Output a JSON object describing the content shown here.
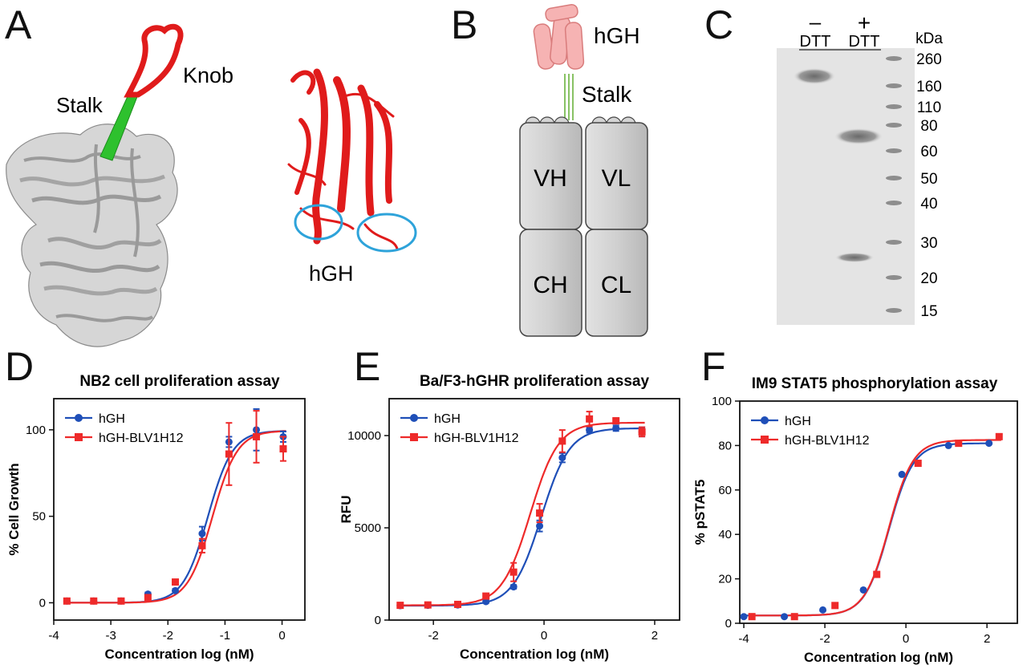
{
  "panels": {
    "A": {
      "letter": "A",
      "labels": {
        "knob": "Knob",
        "stalk": "Stalk",
        "hgh": "hGH"
      }
    },
    "B": {
      "letter": "B",
      "labels": {
        "hgh": "hGH",
        "stalk": "Stalk",
        "vh": "VH",
        "vl": "VL",
        "ch": "CH",
        "cl": "CL"
      }
    },
    "C": {
      "letter": "C",
      "lane_labels": {
        "minus": "–",
        "plus": "+",
        "dtt1": "DTT",
        "dtt2": "DTT"
      },
      "unit": "kDa",
      "markers": [
        "260",
        "160",
        "110",
        "80",
        "60",
        "50",
        "40",
        "30",
        "20",
        "15"
      ]
    },
    "D": {
      "letter": "D"
    },
    "E": {
      "letter": "E"
    },
    "F": {
      "letter": "F"
    }
  },
  "colors": {
    "hgh": "#1f4fb8",
    "fusion": "#ee2a2a",
    "ribbon_red": "#e01b1b",
    "ribbon_green": "#2ec12e",
    "ribbon_grey": "#b9b9b9",
    "circle": "#2ea3da"
  },
  "chart_data": [
    {
      "panel": "D",
      "type": "scatter",
      "title": "NB2 cell proliferation assay",
      "xlabel": "Concentration log (nM)",
      "ylabel": "% Cell Growth",
      "xlim": [
        -4,
        0.4
      ],
      "ylim": [
        -10,
        118
      ],
      "xticks": [
        "-4",
        "-3",
        "-2",
        "-1",
        "0"
      ],
      "yticks": [
        "0",
        "50",
        "100"
      ],
      "legend_position": "top-left",
      "series": [
        {
          "name": "hGH",
          "marker": "circle",
          "x": [
            -3.77,
            -3.3,
            -2.82,
            -2.35,
            -1.87,
            -1.4,
            -0.93,
            -0.45,
            0.02
          ],
          "y": [
            1,
            1,
            1,
            5,
            7,
            40,
            93,
            100,
            96
          ],
          "err": [
            1,
            1,
            1,
            1,
            1,
            4,
            3,
            12,
            3
          ],
          "fit": {
            "bottom": 0,
            "top": 99.5,
            "ec50log": -1.3,
            "hill": 2.0
          }
        },
        {
          "name": "hGH-BLV1H12",
          "marker": "square",
          "x": [
            -3.77,
            -3.3,
            -2.82,
            -2.35,
            -1.87,
            -1.4,
            -0.93,
            -0.45,
            0.02
          ],
          "y": [
            1,
            1,
            1,
            3,
            12,
            33,
            86,
            96,
            89
          ],
          "err": [
            1,
            1,
            1,
            1,
            1,
            4,
            18,
            15,
            7
          ],
          "fit": {
            "bottom": 0,
            "top": 99.5,
            "ec50log": -1.22,
            "hill": 2.0
          }
        }
      ]
    },
    {
      "panel": "E",
      "type": "scatter",
      "title": "Ba/F3-hGHR proliferation assay",
      "xlabel": "Concentration log (nM)",
      "ylabel": "RFU",
      "xlim": [
        -2.8,
        2.45
      ],
      "ylim": [
        0,
        12000
      ],
      "xticks": [
        "-2",
        "0",
        "2"
      ],
      "yticks": [
        "0",
        "5000",
        "10000"
      ],
      "legend_position": "top-left",
      "series": [
        {
          "name": "hGH",
          "marker": "circle",
          "x": [
            -2.6,
            -2.1,
            -1.56,
            -1.05,
            -0.55,
            -0.08,
            0.33,
            0.82,
            1.3,
            1.77
          ],
          "y": [
            780,
            800,
            820,
            1000,
            1800,
            5100,
            8800,
            10300,
            10400,
            10200
          ],
          "err": [
            60,
            60,
            60,
            80,
            100,
            300,
            250,
            150,
            150,
            250
          ],
          "fit": {
            "bottom": 780,
            "top": 10400,
            "ec50log": -0.05,
            "hill": 1.7
          }
        },
        {
          "name": "hGH-BLV1H12",
          "marker": "square",
          "x": [
            -2.6,
            -2.1,
            -1.56,
            -1.05,
            -0.55,
            -0.08,
            0.33,
            0.82,
            1.3,
            1.77
          ],
          "y": [
            800,
            820,
            850,
            1300,
            2600,
            5800,
            9700,
            10900,
            10800,
            10200
          ],
          "err": [
            60,
            60,
            60,
            100,
            500,
            500,
            600,
            400,
            150,
            250
          ],
          "fit": {
            "bottom": 800,
            "top": 10700,
            "ec50log": -0.25,
            "hill": 1.7
          }
        }
      ]
    },
    {
      "panel": "F",
      "type": "scatter",
      "title": "IM9 STAT5 phosphorylation assay",
      "xlabel": "Concentration log (nM)",
      "ylabel": "% pSTAT5",
      "xlim": [
        -4.1,
        2.75
      ],
      "ylim": [
        0,
        100
      ],
      "xticks": [
        "-4",
        "-2",
        "0",
        "2"
      ],
      "yticks": [
        "0",
        "20",
        "40",
        "60",
        "80",
        "100"
      ],
      "legend_position": "top-left",
      "series": [
        {
          "name": "hGH",
          "marker": "circle",
          "x": [
            -4.0,
            -3.0,
            -2.05,
            -1.05,
            -0.1,
            1.05,
            2.05
          ],
          "y": [
            3,
            3,
            6,
            15,
            67,
            80,
            81
          ],
          "err": [
            0,
            0,
            0,
            0,
            0,
            0,
            0
          ],
          "fit": {
            "bottom": 3.5,
            "top": 81,
            "ec50log": -0.42,
            "hill": 1.45
          }
        },
        {
          "name": "hGH-BLV1H12",
          "marker": "square",
          "x": [
            -3.8,
            -2.75,
            -1.75,
            -0.72,
            0.3,
            1.3,
            2.3
          ],
          "y": [
            3,
            3,
            8,
            22,
            72,
            81,
            84
          ],
          "err": [
            0,
            0,
            0,
            0,
            0,
            0,
            0
          ],
          "fit": {
            "bottom": 3.5,
            "top": 82.5,
            "ec50log": -0.42,
            "hill": 1.45
          }
        }
      ]
    }
  ]
}
